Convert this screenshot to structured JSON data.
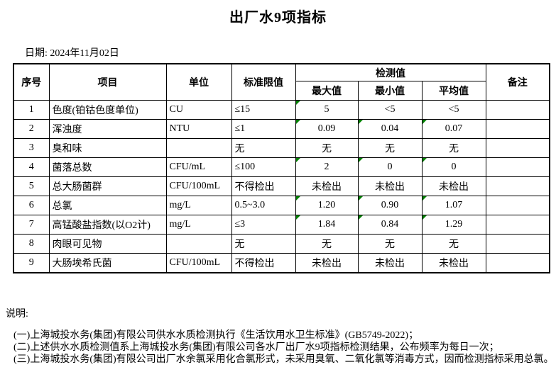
{
  "title": "出厂水9项指标",
  "date_label": "日期: 2024年11月02日",
  "table": {
    "headers": {
      "no": "序号",
      "item": "项目",
      "unit": "单位",
      "limit": "标准限值",
      "detection": "检测值",
      "max": "最大值",
      "min": "最小值",
      "avg": "平均值",
      "remark": "备注"
    },
    "rows": [
      {
        "no": "1",
        "item": "色度(铂钴色度单位)",
        "unit": "CU",
        "limit": "≤15",
        "max": "5",
        "min": "<5",
        "avg": "<5",
        "remark": "",
        "flags": [
          true,
          false,
          false
        ]
      },
      {
        "no": "2",
        "item": "浑浊度",
        "unit": "NTU",
        "limit": "≤1",
        "max": "0.09",
        "min": "0.04",
        "avg": "0.07",
        "remark": "",
        "flags": [
          true,
          true,
          true
        ]
      },
      {
        "no": "3",
        "item": "臭和味",
        "unit": "",
        "limit": "无",
        "max": "无",
        "min": "无",
        "avg": "无",
        "remark": "",
        "flags": [
          false,
          false,
          false
        ]
      },
      {
        "no": "4",
        "item": "菌落总数",
        "unit": "CFU/mL",
        "limit": "≤100",
        "max": "2",
        "min": "0",
        "avg": "0",
        "remark": "",
        "flags": [
          true,
          true,
          true
        ]
      },
      {
        "no": "5",
        "item": "总大肠菌群",
        "unit": "CFU/100mL",
        "limit": "不得检出",
        "max": "未检出",
        "min": "未检出",
        "avg": "未检出",
        "remark": "",
        "flags": [
          false,
          false,
          false
        ]
      },
      {
        "no": "6",
        "item": "总氯",
        "unit": "mg/L",
        "limit": "0.5~3.0",
        "max": "1.20",
        "min": "0.90",
        "avg": "1.07",
        "remark": "",
        "flags": [
          true,
          true,
          true
        ]
      },
      {
        "no": "7",
        "item": "高锰酸盐指数(以O2计)",
        "unit": "mg/L",
        "limit": "≤3",
        "max": "1.84",
        "min": "0.84",
        "avg": "1.29",
        "remark": "",
        "flags": [
          true,
          true,
          true
        ]
      },
      {
        "no": "8",
        "item": "肉眼可见物",
        "unit": "",
        "limit": "无",
        "max": "无",
        "min": "无",
        "avg": "无",
        "remark": "",
        "flags": [
          false,
          false,
          false
        ]
      },
      {
        "no": "9",
        "item": "大肠埃希氏菌",
        "unit": "CFU/100mL",
        "limit": "不得检出",
        "max": "未检出",
        "min": "未检出",
        "avg": "未检出",
        "remark": "",
        "flags": [
          false,
          false,
          false
        ]
      }
    ]
  },
  "notes": {
    "label": "说明:",
    "items": [
      "(一)上海城投水务(集团)有限公司供水水质检测执行《生活饮用水卫生标准》(GB5749-2022)；",
      "(二)上述供水水质检测值系上海城投水务(集团)有限公司各水厂出厂水9项指标检测结果，公布频率为每日一次；",
      "(三)上海城投水务(集团)有限公司出厂水余氯采用化合氯形式，未采用臭氧、二氧化氯等消毒方式，因而检测指标采用总氯。"
    ]
  },
  "colors": {
    "triangle_green": "#008000",
    "border": "#000000"
  }
}
